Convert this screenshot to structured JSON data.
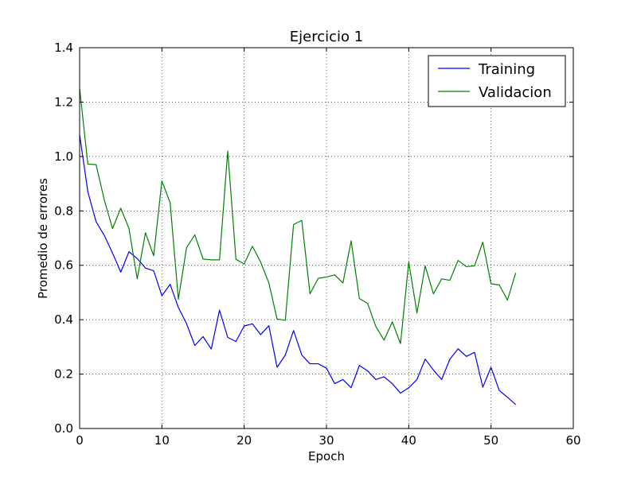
{
  "chart_data": {
    "type": "line",
    "title": "Ejercicio 1",
    "xlabel": "Epoch",
    "ylabel": "Promedio de errores",
    "xlim": [
      0,
      60
    ],
    "ylim": [
      0.0,
      1.4
    ],
    "xticks": [
      0,
      10,
      20,
      30,
      40,
      50,
      60
    ],
    "xtick_labels": [
      "0",
      "10",
      "20",
      "30",
      "40",
      "50",
      "60"
    ],
    "yticks": [
      0.0,
      0.2,
      0.4,
      0.6,
      0.8,
      1.0,
      1.2,
      1.4
    ],
    "ytick_labels": [
      "0.0",
      "0.2",
      "0.4",
      "0.6",
      "0.8",
      "1.0",
      "1.2",
      "1.4"
    ],
    "grid": true,
    "legend_position": "top-right",
    "x": [
      0,
      1,
      2,
      3,
      4,
      5,
      6,
      7,
      8,
      9,
      10,
      11,
      12,
      13,
      14,
      15,
      16,
      17,
      18,
      19,
      20,
      21,
      22,
      23,
      24,
      25,
      26,
      27,
      28,
      29,
      30,
      31,
      32,
      33,
      34,
      35,
      36,
      37,
      38,
      39,
      40,
      41,
      42,
      43,
      44,
      45,
      46,
      47,
      48,
      49,
      50,
      51,
      52,
      53
    ],
    "series": [
      {
        "name": "Training",
        "color": "#0000ff",
        "values": [
          1.08,
          0.87,
          0.76,
          0.71,
          0.645,
          0.575,
          0.65,
          0.625,
          0.59,
          0.58,
          0.488,
          0.53,
          0.445,
          0.385,
          0.305,
          0.338,
          0.292,
          0.435,
          0.335,
          0.32,
          0.377,
          0.385,
          0.345,
          0.378,
          0.225,
          0.27,
          0.36,
          0.27,
          0.238,
          0.238,
          0.222,
          0.165,
          0.18,
          0.15,
          0.232,
          0.212,
          0.18,
          0.19,
          0.165,
          0.13,
          0.15,
          0.18,
          0.255,
          0.215,
          0.18,
          0.255,
          0.293,
          0.265,
          0.28,
          0.152,
          0.225,
          0.14,
          0.115,
          0.088
        ]
      },
      {
        "name": "Validacion",
        "color": "#008000",
        "values": [
          1.25,
          0.972,
          0.97,
          0.84,
          0.735,
          0.81,
          0.735,
          0.55,
          0.72,
          0.635,
          0.91,
          0.83,
          0.475,
          0.665,
          0.712,
          0.623,
          0.62,
          0.62,
          1.02,
          0.622,
          0.605,
          0.67,
          0.612,
          0.535,
          0.402,
          0.398,
          0.75,
          0.765,
          0.495,
          0.552,
          0.557,
          0.565,
          0.535,
          0.69,
          0.478,
          0.46,
          0.375,
          0.325,
          0.392,
          0.312,
          0.612,
          0.425,
          0.598,
          0.495,
          0.55,
          0.545,
          0.618,
          0.595,
          0.598,
          0.685,
          0.532,
          0.528,
          0.472,
          0.572
        ]
      }
    ]
  }
}
